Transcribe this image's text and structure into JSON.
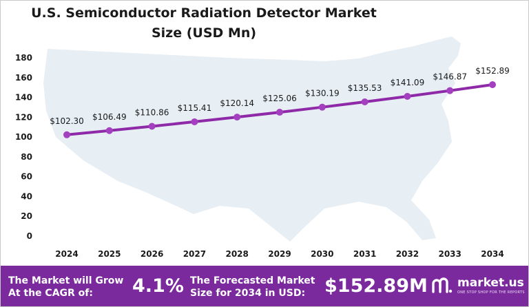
{
  "chart_data": {
    "type": "line",
    "title_lines": [
      "U.S. Semiconductor Radiation Detector Market",
      "Size (USD Mn)"
    ],
    "categories": [
      "2024",
      "2025",
      "2026",
      "2027",
      "2028",
      "2029",
      "2030",
      "2031",
      "2032",
      "2033",
      "2034"
    ],
    "values": [
      102.3,
      106.49,
      110.86,
      115.41,
      120.14,
      125.06,
      130.19,
      135.53,
      141.09,
      146.87,
      152.89
    ],
    "data_labels": [
      "$102.30",
      "$106.49",
      "$110.86",
      "$115.41",
      "$120.14",
      "$125.06",
      "$130.19",
      "$135.53",
      "$141.09",
      "$146.87",
      "$152.89"
    ],
    "yticks": [
      0,
      20,
      40,
      60,
      80,
      100,
      120,
      140,
      160,
      180
    ],
    "ylim": [
      0,
      180
    ],
    "grid": false,
    "legend": "none",
    "background": "U.S. map silhouette",
    "line_color": "#8e2aa8",
    "marker_color": "#a43fc0"
  },
  "footer": {
    "cagr_line1": "The Market will Grow",
    "cagr_line2": "At the CAGR of:",
    "cagr_value": "4.1%",
    "forecast_line1": "The Forecasted Market",
    "forecast_line2": "Size for 2034 in USD:",
    "forecast_value": "$152.89M",
    "background_color": "#7a2a9c"
  },
  "logo": {
    "name": "market.us",
    "tagline": "ONE STOP SHOP FOR THE REPORTS"
  }
}
